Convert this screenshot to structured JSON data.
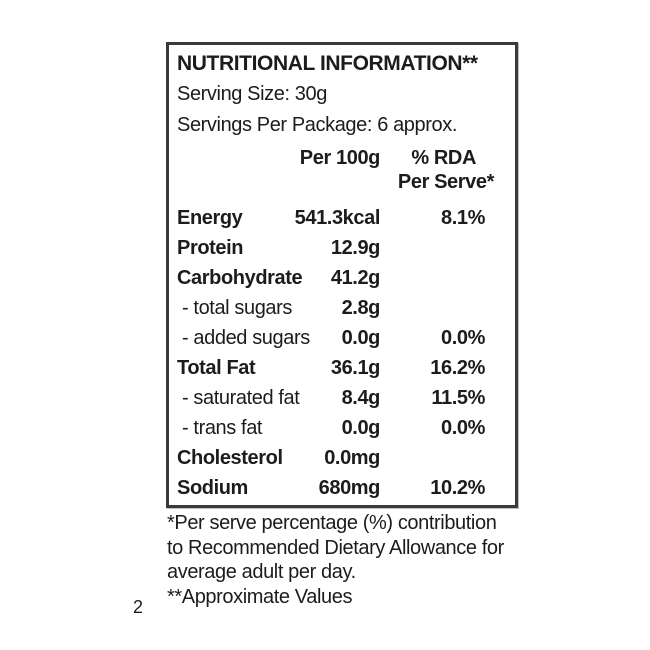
{
  "label": {
    "title": "NUTRITIONAL INFORMATION**",
    "serving_size": "Serving Size: 30g",
    "servings_per_package": "Servings Per Package: 6 approx.",
    "columns": {
      "per100": "Per 100g",
      "rda_line1": "% RDA",
      "rda_line2": "Per Serve*"
    },
    "rows": [
      {
        "name": "Energy",
        "per100": "541.3kcal",
        "rda": "8.1%"
      },
      {
        "name": "Protein",
        "per100": "12.9g",
        "rda": ""
      },
      {
        "name": "Carbohydrate",
        "per100": "41.2g",
        "rda": ""
      },
      {
        "name": "- total sugars",
        "per100": "2.8g",
        "rda": ""
      },
      {
        "name": "- added sugars",
        "per100": "0.0g",
        "rda": "0.0%"
      },
      {
        "name": "Total Fat",
        "per100": "36.1g",
        "rda": "16.2%"
      },
      {
        "name": "- saturated fat",
        "per100": "8.4g",
        "rda": "11.5%"
      },
      {
        "name": "- trans fat",
        "per100": "0.0g",
        "rda": "0.0%"
      },
      {
        "name": "Cholesterol",
        "per100": "0.0mg",
        "rda": ""
      },
      {
        "name": "Sodium",
        "per100": "680mg",
        "rda": "10.2%"
      }
    ]
  },
  "footnotes": {
    "lines": [
      "*Per serve percentage (%) contribution",
      "to Recommended Dietary Allowance for",
      "average adult per day."
    ],
    "approx": "**Approximate Values",
    "stray_digit": "2"
  },
  "colors": {
    "background": "#ffffff",
    "text": "#1c1c1c",
    "border": "#3a3a3a"
  }
}
